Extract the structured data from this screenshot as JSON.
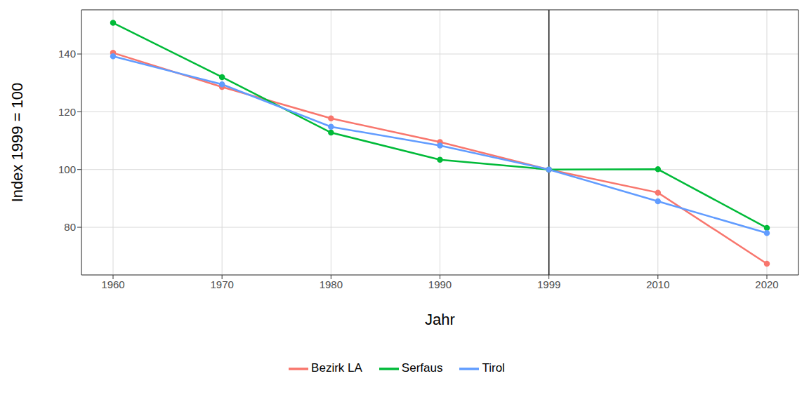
{
  "chart_data": {
    "type": "line",
    "x_label": "Jahr",
    "y_label": "Index 1999 = 100",
    "categories": [
      "1960",
      "1970",
      "1980",
      "1990",
      "1999",
      "2010",
      "2020"
    ],
    "series": [
      {
        "name": "Bezirk LA",
        "color": "#F8766D",
        "marker": "circle",
        "line_style": "solid",
        "values": [
          140.4,
          128.6,
          117.7,
          109.5,
          100,
          92,
          67.4
        ]
      },
      {
        "name": "Serfaus",
        "color": "#00BA38",
        "marker": "circle",
        "line_style": "solid",
        "values": [
          150.8,
          132,
          112.8,
          103.4,
          100,
          100.1,
          79.8
        ]
      },
      {
        "name": "Tirol",
        "color": "#619CFF",
        "marker": "circle",
        "line_style": "solid",
        "values": [
          139.2,
          129.5,
          114.8,
          108.3,
          100,
          89,
          78
        ]
      }
    ],
    "vline": "1999",
    "ylim": [
      63.5,
      155.3
    ],
    "yticks": [
      80,
      100,
      120,
      140
    ],
    "grid": true,
    "legend": "bottom"
  }
}
